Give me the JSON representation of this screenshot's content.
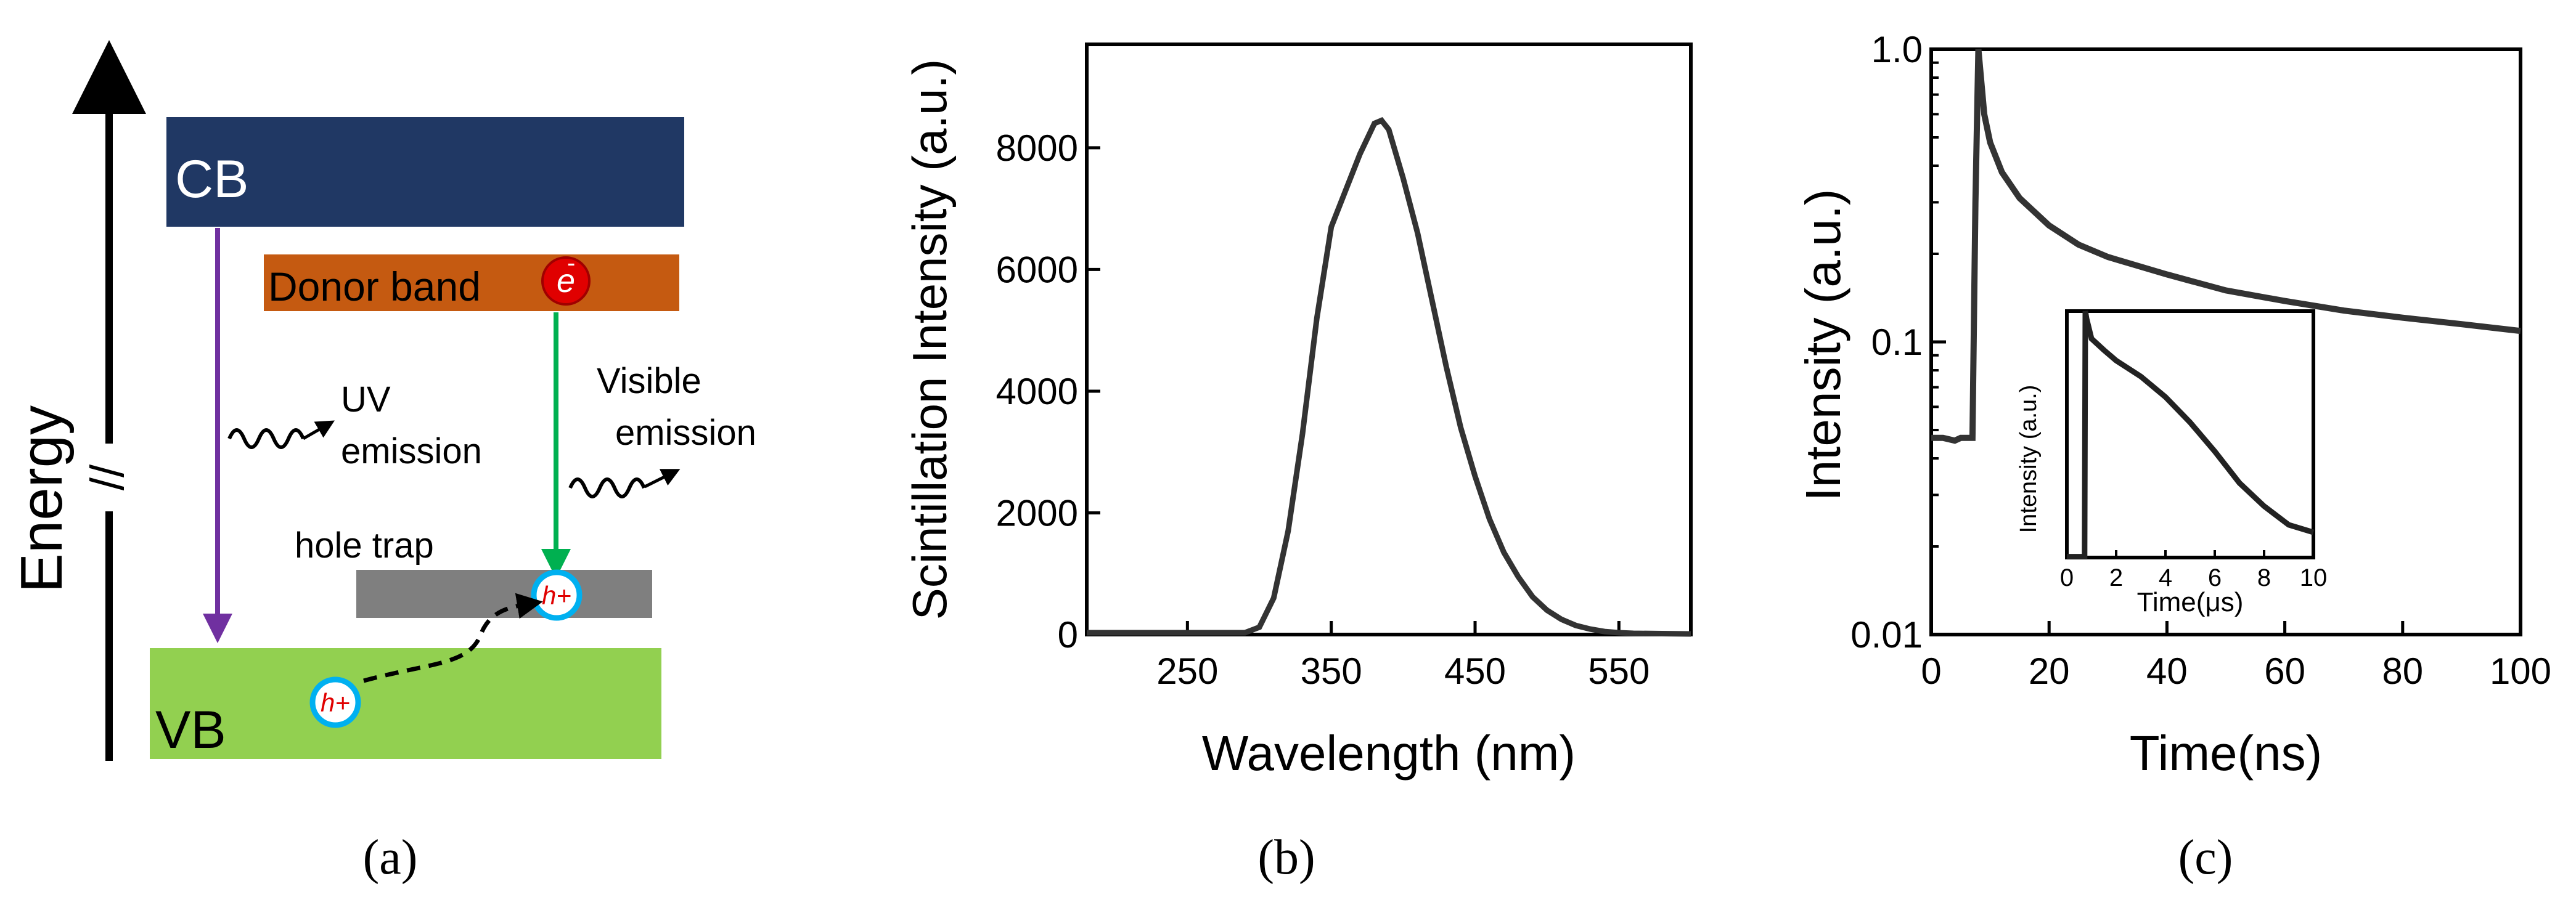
{
  "panel_a": {
    "energy_label": "Energy",
    "axis_break": "//",
    "cb_label": "CB",
    "vb_label": "VB",
    "donor_label": "Donor band",
    "electron_label": "e",
    "electron_sup": "-",
    "hole_label": "h+",
    "hole_trap_label": "hole trap",
    "uv_line1": "UV",
    "uv_line2": "emission",
    "vis_line1": "Visible",
    "vis_line2": "emission",
    "colors": {
      "cb": "#203864",
      "donor": "#c55a11",
      "vb": "#92d050",
      "trap": "#7f7f7f",
      "uv_arrow": "#7030a0",
      "vis_arrow": "#00b050",
      "hole_ring": "#00b0f0",
      "electron": "#e00000"
    }
  },
  "panel_labels": {
    "a": "(a)",
    "b": "(b)",
    "c": "(c)"
  },
  "chart_data": [
    {
      "type": "line",
      "id": "scintillation-spectrum",
      "xlabel": "Wavelength (nm)",
      "ylabel": "Scintillation Intensity (a.u.)",
      "xlim": [
        180,
        600
      ],
      "ylim": [
        0,
        9700
      ],
      "xticks": [
        250,
        350,
        450,
        550
      ],
      "yticks": [
        0,
        2000,
        4000,
        6000,
        8000
      ],
      "xtick_labels": [
        "250",
        "350",
        "450",
        "550"
      ],
      "ytick_labels": [
        "0",
        "2000",
        "4000",
        "6000",
        "8000"
      ],
      "series": [
        {
          "name": "spectrum",
          "x": [
            180,
            250,
            290,
            300,
            310,
            320,
            330,
            340,
            350,
            360,
            370,
            380,
            385,
            390,
            400,
            410,
            420,
            430,
            440,
            450,
            460,
            470,
            480,
            490,
            500,
            510,
            520,
            530,
            540,
            550,
            560,
            580,
            600
          ],
          "y": [
            30,
            30,
            30,
            120,
            600,
            1700,
            3300,
            5200,
            6700,
            7300,
            7900,
            8400,
            8450,
            8300,
            7500,
            6600,
            5500,
            4400,
            3400,
            2600,
            1900,
            1350,
            950,
            620,
            400,
            250,
            150,
            90,
            50,
            30,
            20,
            15,
            10
          ]
        }
      ]
    },
    {
      "type": "line",
      "id": "decay-curve",
      "xlabel": "Time(ns)",
      "ylabel": "Intensity (a.u.)",
      "yscale": "log",
      "xlim": [
        0,
        100
      ],
      "ylim": [
        0.01,
        1.0
      ],
      "xticks": [
        0,
        20,
        40,
        60,
        80,
        100
      ],
      "yticks": [
        0.01,
        0.1,
        1.0
      ],
      "xtick_labels": [
        "0",
        "20",
        "40",
        "60",
        "80",
        "100"
      ],
      "ytick_labels": [
        "0.01",
        "0.1",
        "1.0"
      ],
      "series": [
        {
          "name": "decay",
          "x": [
            0,
            2,
            4,
            5,
            6,
            6.5,
            7,
            7.5,
            8,
            9,
            10,
            12,
            15,
            20,
            25,
            30,
            40,
            50,
            60,
            70,
            80,
            90,
            100
          ],
          "y": [
            0.047,
            0.047,
            0.046,
            0.047,
            0.047,
            0.047,
            0.047,
            0.3,
            1.0,
            0.6,
            0.48,
            0.38,
            0.31,
            0.25,
            0.215,
            0.195,
            0.17,
            0.15,
            0.138,
            0.128,
            0.121,
            0.115,
            0.109
          ]
        }
      ],
      "inset": {
        "type": "line",
        "xlabel": "Time(μs)",
        "ylabel": "Intensity (a.u.)",
        "xlim": [
          0,
          10
        ],
        "xticks": [
          0,
          2,
          4,
          6,
          8,
          10
        ],
        "xtick_labels": [
          "0",
          "2",
          "4",
          "6",
          "8",
          "10"
        ],
        "series": [
          {
            "name": "decay-long",
            "x": [
              0.75,
              0.8,
              1.0,
              1.5,
              2,
              3,
              4,
              5,
              6,
              7,
              8,
              9,
              10
            ],
            "y": [
              1.0,
              0.9,
              0.68,
              0.58,
              0.5,
              0.4,
              0.3,
              0.21,
              0.14,
              0.09,
              0.065,
              0.05,
              0.045
            ]
          }
        ]
      }
    }
  ]
}
